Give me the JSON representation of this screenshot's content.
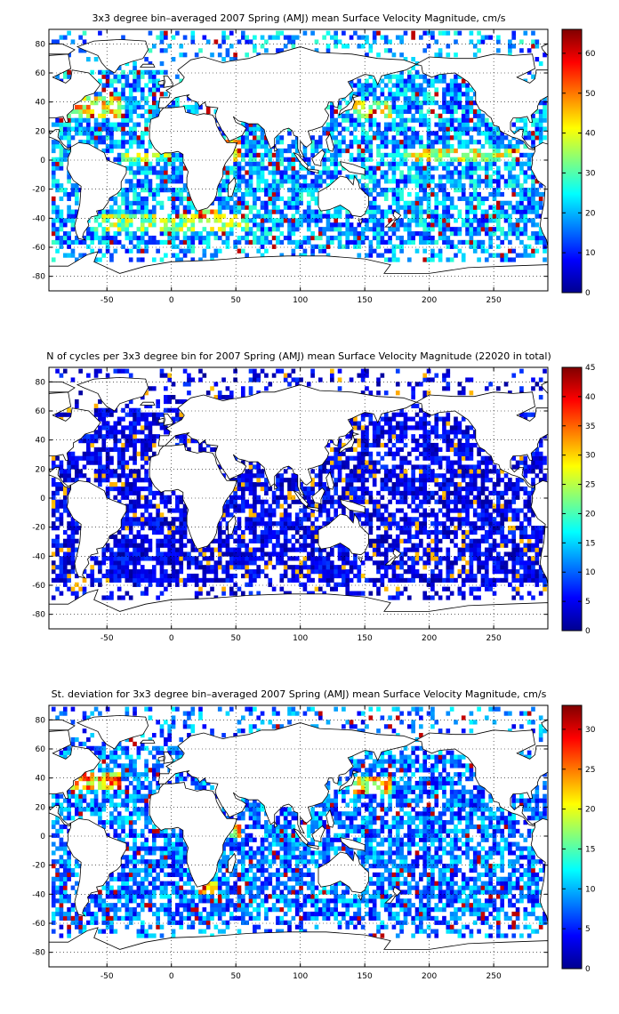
{
  "panels": [
    {
      "id": "mean",
      "title": "3x3 degree bin–averaged 2007 Spring (AMJ) mean Surface Velocity Magnitude, cm/s",
      "xlim": [
        -95,
        292
      ],
      "ylim": [
        -90,
        90
      ],
      "xticks": [
        -50,
        0,
        50,
        100,
        150,
        200,
        250
      ],
      "yticks": [
        -80,
        -60,
        -40,
        -20,
        0,
        20,
        40,
        60,
        80
      ],
      "clim": [
        0,
        66
      ],
      "cticks": [
        0,
        10,
        20,
        30,
        40,
        50,
        60
      ]
    },
    {
      "id": "count",
      "title": "N of cycles per 3x3 degree bin for 2007 Spring (AMJ) mean Surface Velocity Magnitude (22020 in total)",
      "xlim": [
        -95,
        292
      ],
      "ylim": [
        -90,
        90
      ],
      "xticks": [
        -50,
        0,
        50,
        100,
        150,
        200,
        250
      ],
      "yticks": [
        -80,
        -60,
        -40,
        -20,
        0,
        20,
        40,
        60,
        80
      ],
      "clim": [
        0,
        45
      ],
      "cticks": [
        0,
        5,
        10,
        15,
        20,
        25,
        30,
        35,
        40,
        45
      ]
    },
    {
      "id": "std",
      "title": "St. deviation for 3x3 degree bin–averaged 2007 Spring (AMJ) mean Surface Velocity Magnitude, cm/s",
      "xlim": [
        -95,
        292
      ],
      "ylim": [
        -90,
        90
      ],
      "xticks": [
        -50,
        0,
        50,
        100,
        150,
        200,
        250
      ],
      "yticks": [
        -80,
        -60,
        -40,
        -20,
        0,
        20,
        40,
        60,
        80
      ],
      "clim": [
        0,
        33
      ],
      "cticks": [
        0,
        5,
        10,
        15,
        20,
        25,
        30
      ]
    }
  ],
  "chart_data": [
    {
      "type": "heatmap",
      "title": "3x3 degree bin–averaged 2007 Spring (AMJ) mean Surface Velocity Magnitude, cm/s",
      "bin_size_deg": 3,
      "xlim": [
        -95,
        292
      ],
      "ylim": [
        -90,
        90
      ],
      "colormap": "jet",
      "clim": [
        0,
        66
      ],
      "grid": true,
      "colorbar": "right",
      "high_value_regions": [
        {
          "lon": [
            -80,
            -40
          ],
          "lat": [
            30,
            45
          ],
          "value": 55
        },
        {
          "lon": [
            -40,
            0
          ],
          "lat": [
            -2,
            6
          ],
          "value": 45
        },
        {
          "lon": [
            40,
            55
          ],
          "lat": [
            0,
            15
          ],
          "value": 60
        },
        {
          "lon": [
            140,
            170
          ],
          "lat": [
            30,
            40
          ],
          "value": 50
        },
        {
          "lon": [
            180,
            270
          ],
          "lat": [
            -2,
            8
          ],
          "value": 50
        },
        {
          "lon": [
            -60,
            60
          ],
          "lat": [
            -48,
            -38
          ],
          "value": 45
        },
        {
          "lon": [
            20,
            35
          ],
          "lat": [
            -40,
            -30
          ],
          "value": 60
        }
      ]
    },
    {
      "type": "heatmap",
      "title": "N of cycles per 3x3 degree bin for 2007 Spring (AMJ) mean Surface Velocity Magnitude (22020 in total)",
      "bin_size_deg": 3,
      "total_cycles": 22020,
      "xlim": [
        -95,
        292
      ],
      "ylim": [
        -90,
        90
      ],
      "colormap": "jet",
      "clim": [
        0,
        45
      ],
      "grid": true,
      "colorbar": "right",
      "typical_value": 4
    },
    {
      "type": "heatmap",
      "title": "St. deviation for 3x3 degree bin–averaged 2007 Spring (AMJ) mean Surface Velocity Magnitude, cm/s",
      "bin_size_deg": 3,
      "xlim": [
        -95,
        292
      ],
      "ylim": [
        -90,
        90
      ],
      "colormap": "jet",
      "clim": [
        0,
        33
      ],
      "grid": true,
      "colorbar": "right",
      "high_value_regions": [
        {
          "lon": [
            -80,
            -40
          ],
          "lat": [
            32,
            45
          ],
          "value": 30
        },
        {
          "lon": [
            140,
            170
          ],
          "lat": [
            30,
            40
          ],
          "value": 28
        },
        {
          "lon": [
            40,
            55
          ],
          "lat": [
            0,
            12
          ],
          "value": 28
        },
        {
          "lon": [
            20,
            35
          ],
          "lat": [
            -40,
            -30
          ],
          "value": 30
        }
      ]
    }
  ]
}
